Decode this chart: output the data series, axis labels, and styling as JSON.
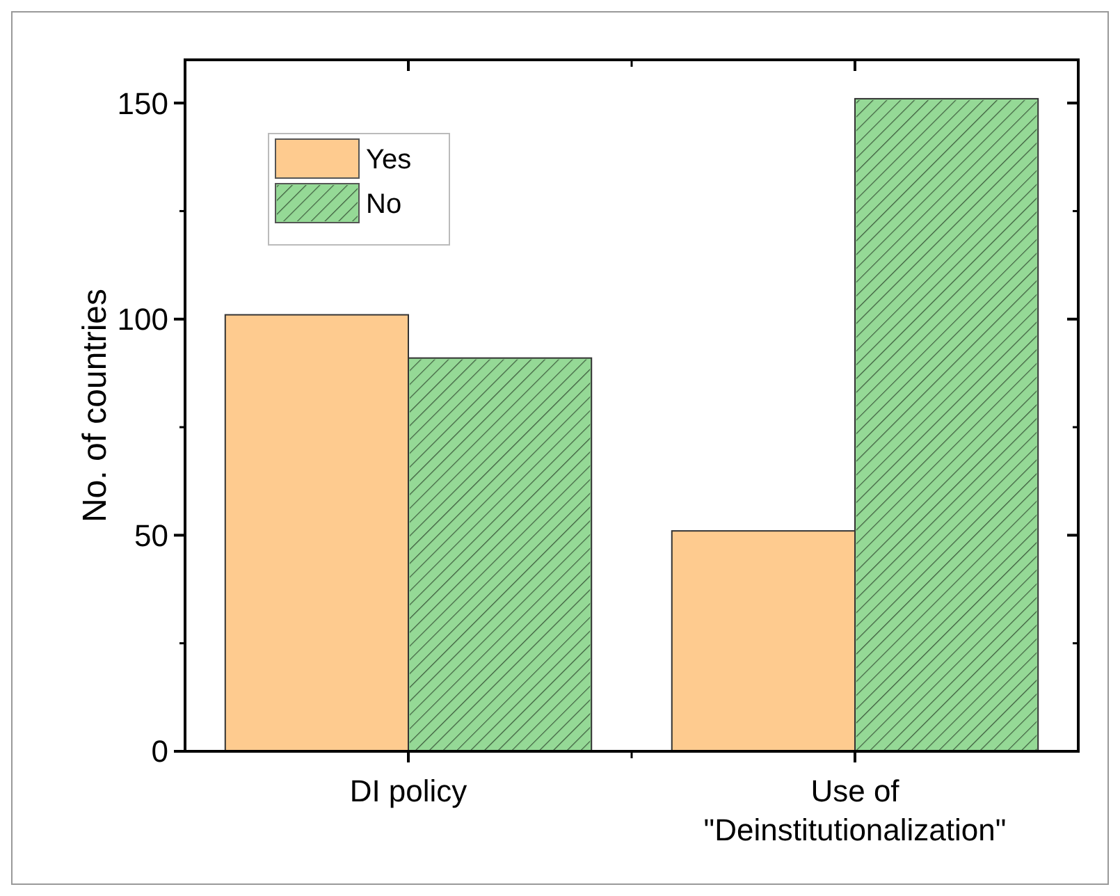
{
  "chart_data": {
    "type": "bar",
    "ylabel": "No. of countries",
    "categories": [
      "DI policy",
      "Use of\n\"Deinstitutionalization\""
    ],
    "series": [
      {
        "name": "Yes",
        "color": "#fecb8f",
        "values": [
          101,
          51
        ]
      },
      {
        "name": "No",
        "color": "#95d996",
        "values": [
          91,
          151
        ]
      }
    ],
    "ylim": [
      0,
      160
    ],
    "yticks": [
      0,
      50,
      100,
      150
    ],
    "legend": "top left",
    "grid": false
  }
}
